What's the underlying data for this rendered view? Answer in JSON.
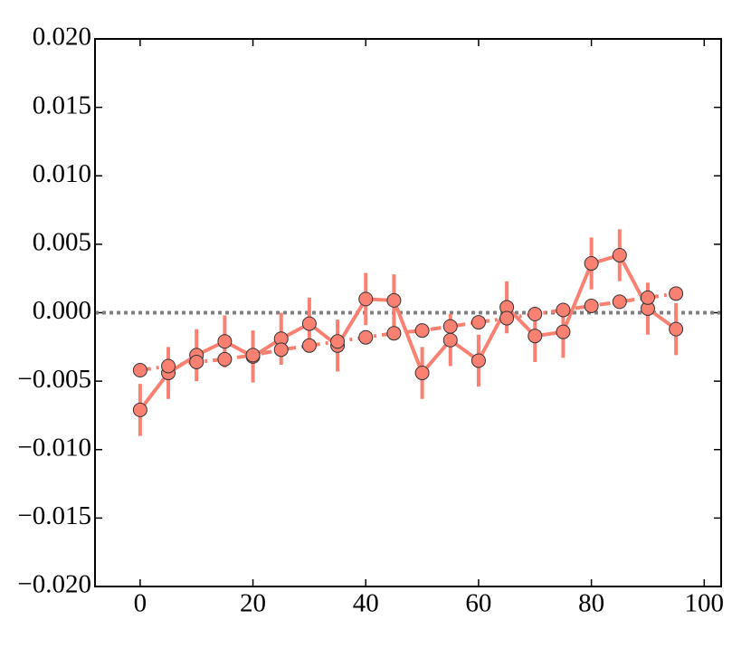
{
  "chart_data": {
    "type": "line",
    "x": [
      0,
      5,
      10,
      15,
      20,
      25,
      30,
      35,
      40,
      45,
      50,
      55,
      60,
      65,
      70,
      75,
      80,
      85,
      90,
      95
    ],
    "series": [
      {
        "color": "#fa8072",
        "linestyle": "solid",
        "values": [
          -0.0071,
          -0.0044,
          -0.0031,
          -0.0021,
          -0.0032,
          -0.0019,
          -0.0008,
          -0.0024,
          0.001,
          0.0009,
          -0.0044,
          -0.002,
          -0.0035,
          0.0004,
          -0.0017,
          -0.0014,
          0.0036,
          0.0042,
          0.0003,
          -0.0012
        ],
        "errors": [
          0.0019,
          0.0019,
          0.0019,
          0.0019,
          0.0019,
          0.0019,
          0.0019,
          0.0019,
          0.0019,
          0.0019,
          0.0019,
          0.0019,
          0.0019,
          0.0019,
          0.0019,
          0.0019,
          0.0019,
          0.0019,
          0.0019,
          0.0019
        ]
      },
      {
        "color": "#fa8072",
        "linestyle": "dashdot",
        "values": [
          -0.0042,
          -0.0039,
          -0.0036,
          -0.0034,
          -0.0031,
          -0.0027,
          -0.0024,
          -0.0021,
          -0.0018,
          -0.0015,
          -0.0013,
          -0.001,
          -0.0007,
          -0.0004,
          -0.0001,
          0.0002,
          0.0005,
          0.0008,
          0.0011,
          0.0014
        ]
      }
    ],
    "reference_line": 0,
    "xlim": [
      -8,
      103
    ],
    "ylim": [
      -0.02,
      0.02
    ],
    "xticks": [
      0,
      20,
      40,
      60,
      80,
      100
    ],
    "yticks": [
      {
        "value": -0.02,
        "label": "−0.020"
      },
      {
        "value": -0.015,
        "label": "−0.015"
      },
      {
        "value": -0.01,
        "label": "−0.010"
      },
      {
        "value": -0.005,
        "label": "−0.005"
      },
      {
        "value": 0,
        "label": "0.000"
      },
      {
        "value": 0.005,
        "label": "0.005"
      },
      {
        "value": 0.01,
        "label": "0.010"
      },
      {
        "value": 0.015,
        "label": "0.015"
      },
      {
        "value": 0.02,
        "label": "0.020"
      }
    ]
  }
}
